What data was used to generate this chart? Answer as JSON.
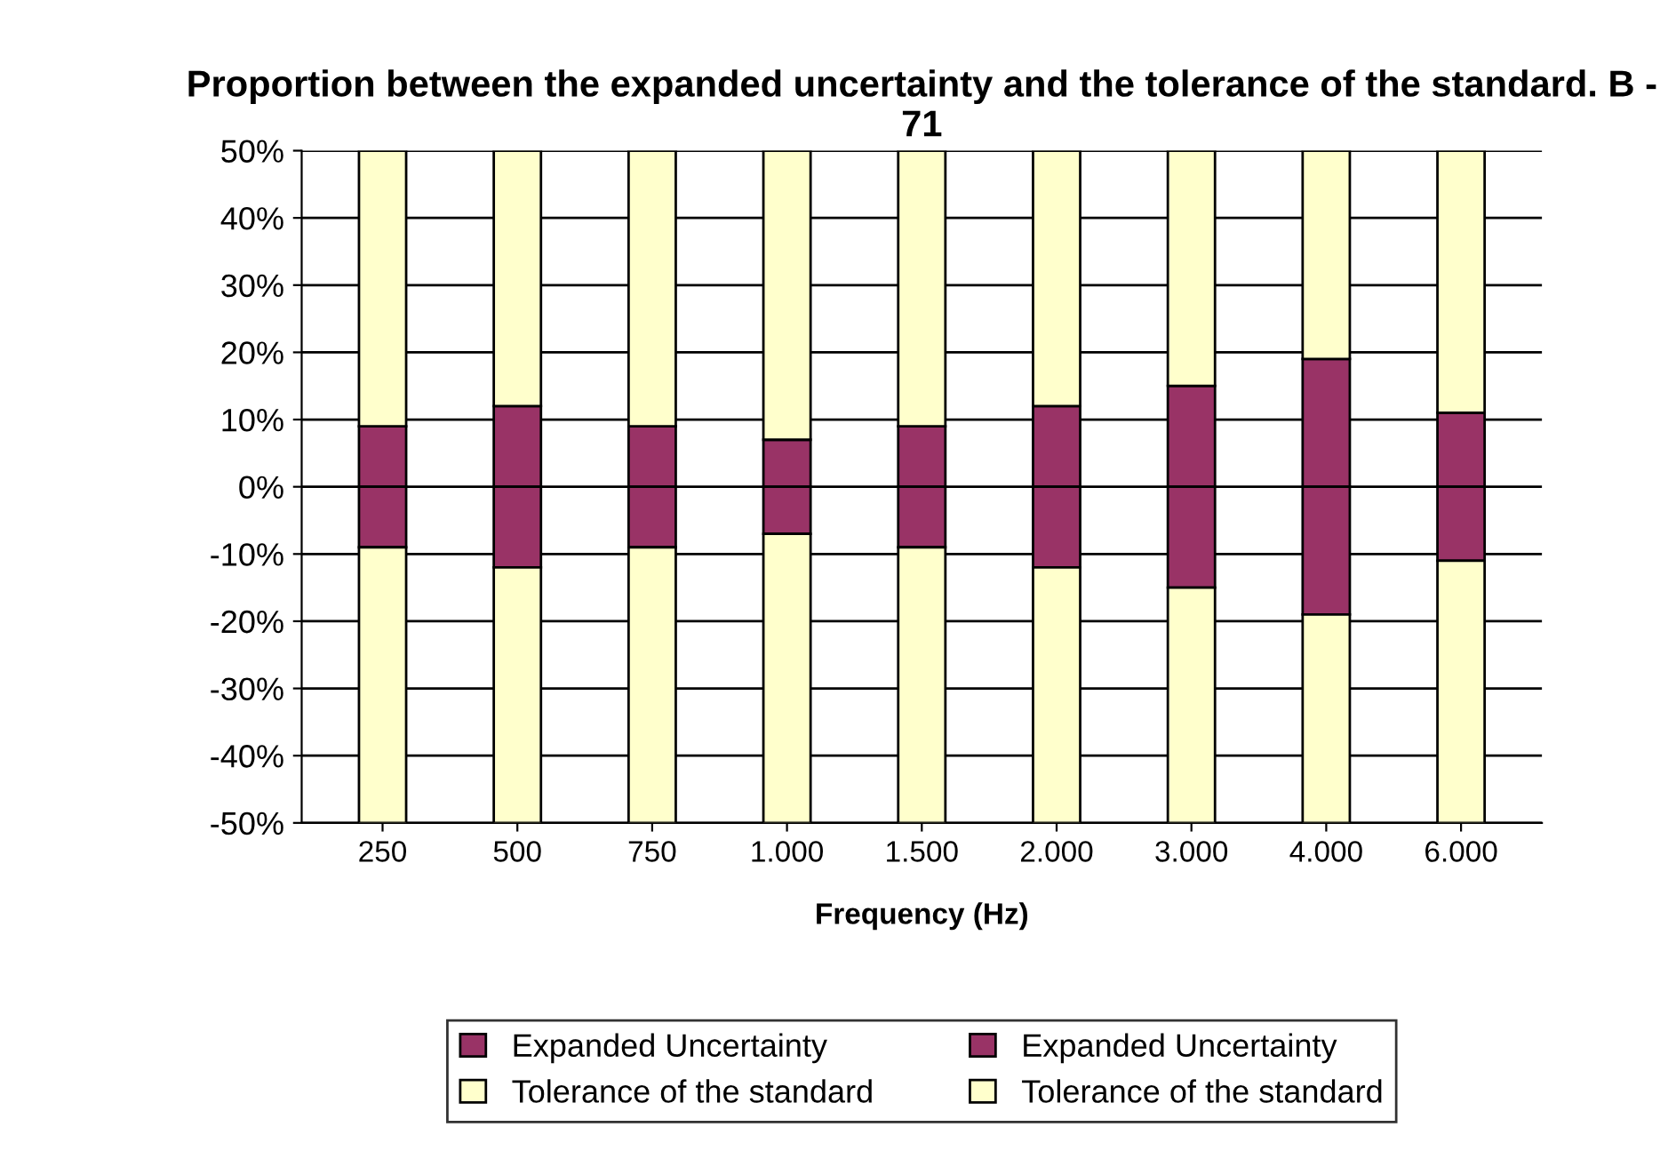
{
  "chart_data": {
    "type": "bar",
    "title": "Proportion between the expanded uncertainty and the tolerance of the standard. B - 71",
    "xlabel": "Frequency (Hz)",
    "categories": [
      "250",
      "500",
      "750",
      "1.000",
      "1.500",
      "2.000",
      "3.000",
      "4.000",
      "6.000"
    ],
    "stacked": true,
    "series": [
      {
        "name": "Expanded Uncertainty",
        "color": "#993366",
        "values": [
          9,
          12,
          9,
          7,
          9,
          12,
          15,
          19,
          11
        ]
      },
      {
        "name": "Tolerance of the standard",
        "color": "#ffffcc",
        "values": [
          41,
          38,
          41,
          43,
          41,
          38,
          35,
          31,
          39
        ]
      },
      {
        "name": "Expanded Uncertainty",
        "color": "#993366",
        "values": [
          -9,
          -12,
          -9,
          -7,
          -9,
          -12,
          -15,
          -19,
          -11
        ]
      },
      {
        "name": "Tolerance of the standard",
        "color": "#ffffcc",
        "values": [
          -41,
          -38,
          -41,
          -43,
          -41,
          -38,
          -35,
          -31,
          -39
        ]
      }
    ],
    "ylim": [
      -50,
      50
    ],
    "yticks": [
      {
        "value": -50,
        "label": "-50%"
      },
      {
        "value": -40,
        "label": "-40%"
      },
      {
        "value": -30,
        "label": "-30%"
      },
      {
        "value": -20,
        "label": "-20%"
      },
      {
        "value": -10,
        "label": "-10%"
      },
      {
        "value": 0,
        "label": "0%"
      },
      {
        "value": 10,
        "label": "10%"
      },
      {
        "value": 20,
        "label": "20%"
      },
      {
        "value": 30,
        "label": "30%"
      },
      {
        "value": 40,
        "label": "40%"
      },
      {
        "value": 50,
        "label": "50%"
      }
    ],
    "grid": "y",
    "legend": "bottom"
  }
}
